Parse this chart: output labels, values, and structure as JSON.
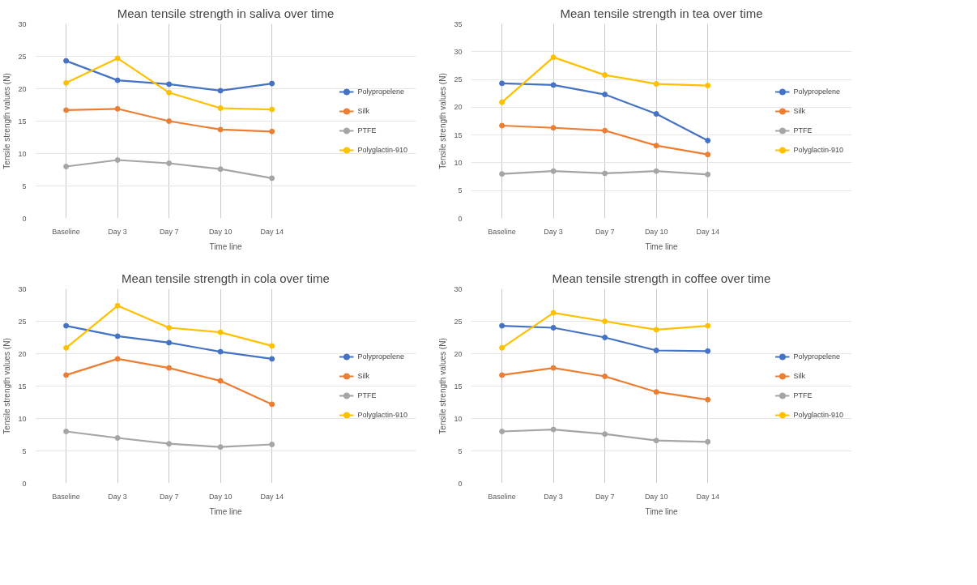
{
  "chart_data": [
    {
      "type": "line",
      "title": "Mean tensile strength in saliva over time",
      "xlabel": "Time line",
      "ylabel": "Tensile strength values (N)",
      "categories": [
        "Baseline",
        "Day 3",
        "Day 7",
        "Day 10",
        "Day 14"
      ],
      "ylim": [
        0,
        30
      ],
      "yticks": [
        0,
        5,
        10,
        15,
        20,
        25,
        30
      ],
      "grid": true,
      "legend": "right",
      "marker": "circle",
      "series": [
        {
          "name": "Polypropelene",
          "color": "#4472c4",
          "values": [
            24.3,
            21.3,
            20.7,
            19.7,
            20.8
          ]
        },
        {
          "name": "Silk",
          "color": "#ed7d31",
          "values": [
            16.7,
            16.9,
            15.0,
            13.7,
            13.4
          ]
        },
        {
          "name": "PTFE",
          "color": "#a5a5a5",
          "values": [
            8.0,
            9.0,
            8.5,
            7.6,
            6.2
          ]
        },
        {
          "name": "Polyglactin-910",
          "color": "#ffc000",
          "values": [
            20.9,
            24.7,
            19.4,
            17.0,
            16.8
          ]
        }
      ]
    },
    {
      "type": "line",
      "title": "Mean tensile strength in tea over time",
      "xlabel": "Time line",
      "ylabel": "Tensile strength values (N)",
      "categories": [
        "Baseline",
        "Day 3",
        "Day 7",
        "Day 10",
        "Day 14"
      ],
      "ylim": [
        0,
        35
      ],
      "yticks": [
        0,
        5,
        10,
        15,
        20,
        25,
        30,
        35
      ],
      "grid": true,
      "legend": "right",
      "marker": "circle",
      "series": [
        {
          "name": "Polypropelene",
          "color": "#4472c4",
          "values": [
            24.3,
            24.0,
            22.3,
            18.8,
            14.0
          ]
        },
        {
          "name": "Silk",
          "color": "#ed7d31",
          "values": [
            16.7,
            16.3,
            15.8,
            13.1,
            11.5
          ]
        },
        {
          "name": "PTFE",
          "color": "#a5a5a5",
          "values": [
            8.0,
            8.5,
            8.1,
            8.5,
            7.9
          ]
        },
        {
          "name": "Polyglactin-910",
          "color": "#ffc000",
          "values": [
            20.9,
            29.0,
            25.8,
            24.2,
            23.9
          ]
        }
      ]
    },
    {
      "type": "line",
      "title": "Mean tensile strength in cola over time",
      "xlabel": "Time line",
      "ylabel": "Tensile strength values (N)",
      "categories": [
        "Baseline",
        "Day 3",
        "Day 7",
        "Day 10",
        "Day 14"
      ],
      "ylim": [
        0,
        30
      ],
      "yticks": [
        0,
        5,
        10,
        15,
        20,
        25,
        30
      ],
      "grid": true,
      "legend": "right",
      "marker": "circle",
      "series": [
        {
          "name": "Polypropelene",
          "color": "#4472c4",
          "values": [
            24.3,
            22.7,
            21.7,
            20.3,
            19.2
          ]
        },
        {
          "name": "Silk",
          "color": "#ed7d31",
          "values": [
            16.7,
            19.2,
            17.8,
            15.8,
            12.2
          ]
        },
        {
          "name": "PTFE",
          "color": "#a5a5a5",
          "values": [
            8.0,
            7.0,
            6.1,
            5.6,
            6.0
          ]
        },
        {
          "name": "Polyglactin-910",
          "color": "#ffc000",
          "values": [
            20.9,
            27.4,
            24.0,
            23.3,
            21.2
          ]
        }
      ]
    },
    {
      "type": "line",
      "title": "Mean tensile strength in coffee over time",
      "xlabel": "Time line",
      "ylabel": "Tensile strength values (N)",
      "categories": [
        "Baseline",
        "Day 3",
        "Day 7",
        "Day 10",
        "Day 14"
      ],
      "ylim": [
        0,
        30
      ],
      "yticks": [
        0,
        5,
        10,
        15,
        20,
        25,
        30
      ],
      "grid": true,
      "legend": "right",
      "marker": "circle",
      "series": [
        {
          "name": "Polypropelene",
          "color": "#4472c4",
          "values": [
            24.3,
            24.0,
            22.5,
            20.5,
            20.4
          ]
        },
        {
          "name": "Silk",
          "color": "#ed7d31",
          "values": [
            16.7,
            17.8,
            16.5,
            14.1,
            12.9
          ]
        },
        {
          "name": "PTFE",
          "color": "#a5a5a5",
          "values": [
            8.0,
            8.3,
            7.6,
            6.6,
            6.4
          ]
        },
        {
          "name": "Polyglactin-910",
          "color": "#ffc000",
          "values": [
            20.9,
            26.3,
            25.0,
            23.7,
            24.3
          ]
        }
      ]
    }
  ]
}
